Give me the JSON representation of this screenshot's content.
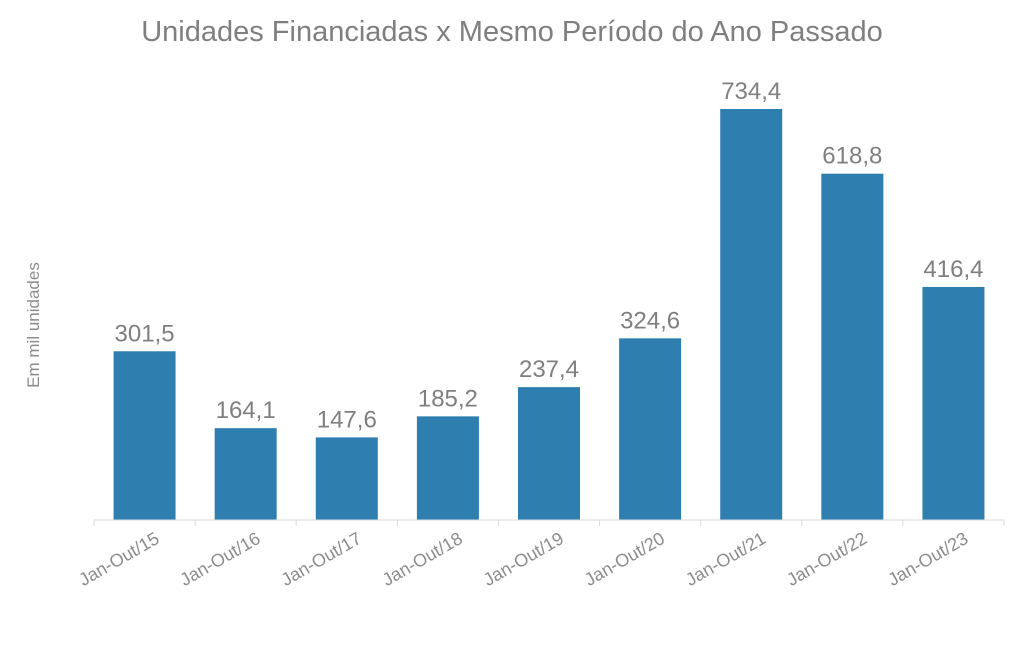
{
  "chart_data": {
    "type": "bar",
    "title": "Unidades Financiadas x Mesmo Período do Ano Passado",
    "ylabel": "Em mil unidades",
    "xlabel": "",
    "categories": [
      "Jan-Out/15",
      "Jan-Out/16",
      "Jan-Out/17",
      "Jan-Out/18",
      "Jan-Out/19",
      "Jan-Out/20",
      "Jan-Out/21",
      "Jan-Out/22",
      "Jan-Out/23"
    ],
    "values": [
      301.5,
      164.1,
      147.6,
      185.2,
      237.4,
      324.6,
      734.4,
      618.8,
      416.4
    ],
    "data_labels": [
      "301,5",
      "164,1",
      "147,6",
      "185,2",
      "237,4",
      "324,6",
      "734,4",
      "618,8",
      "416,4"
    ],
    "ylim": [
      0,
      734.4
    ],
    "grid": false,
    "legend": "none",
    "bar_color": "#2e7eb0",
    "axis_color": "#d9d9d9"
  }
}
